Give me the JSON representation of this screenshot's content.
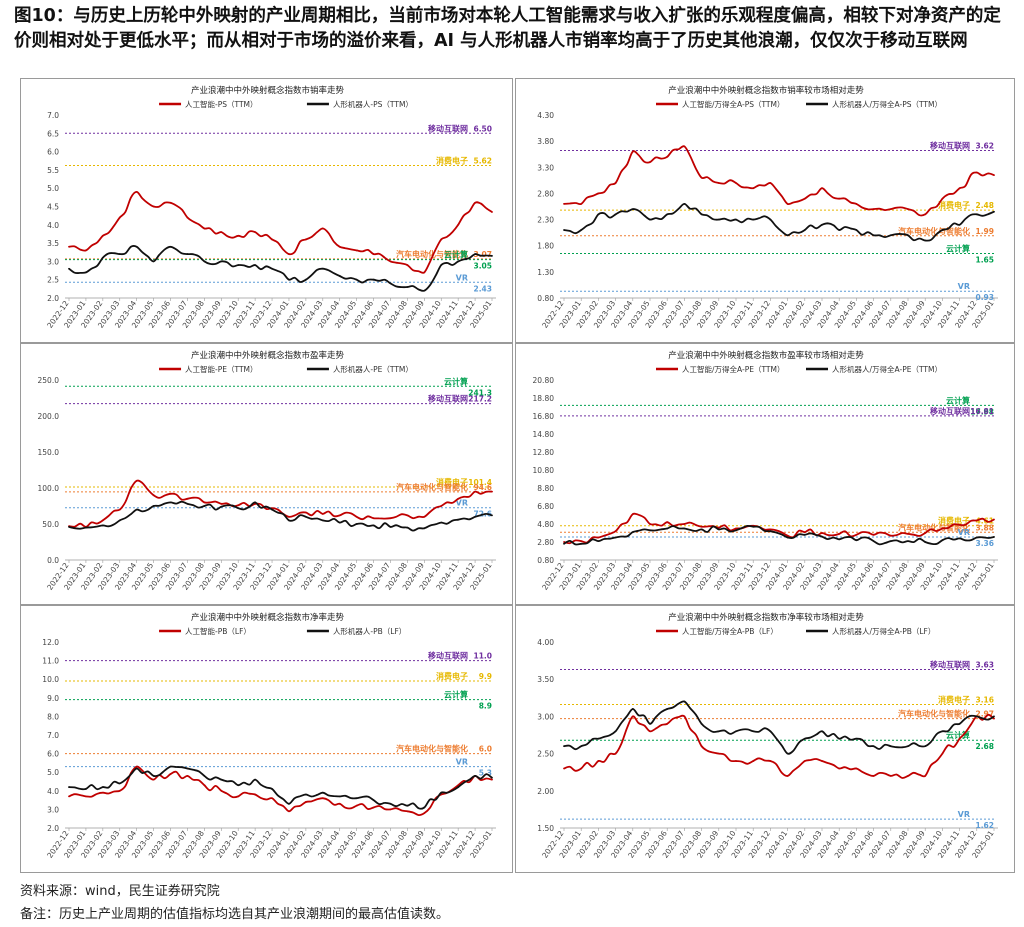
{
  "headline": "图10：与历史上历轮中外映射的产业周期相比，当前市场对本轮人工智能需求与收入扩张的乐观程度偏高，相较下对净资产的定价则相对处于更低水平；而从相对于市场的溢价来看，AI 与人形机器人市销率均高于了历史其他浪潮，仅仅次于移动互联网",
  "footer": {
    "source": "资料来源：wind，民生证券研究院",
    "note": "备注：历史上产业周期的估值指标均选自其产业浪潮期间的最高估值读数。"
  },
  "colors": {
    "red": "#c00000",
    "black": "#111111",
    "purple": "#7030a0",
    "yellow": "#e6b800",
    "green": "#00a050",
    "orange": "#ed7d31",
    "blue": "#5b9bd5"
  },
  "chart_data": [
    {
      "type": "line",
      "title": "产业浪潮中中外映射概念指数市销率走势",
      "x": [
        "2022-12",
        "2023-01",
        "2023-02",
        "2023-03",
        "2023-04",
        "2023-05",
        "2023-06",
        "2023-07",
        "2023-08",
        "2023-09",
        "2023-10",
        "2023-11",
        "2023-12",
        "2024-01",
        "2024-02",
        "2024-03",
        "2024-04",
        "2024-05",
        "2024-06",
        "2024-07",
        "2024-08",
        "2024-09",
        "2024-10",
        "2024-11",
        "2024-12",
        "2025-01"
      ],
      "ylim": [
        2.0,
        7.0
      ],
      "yticks": [
        "2.0",
        "2.5",
        "3.0",
        "3.5",
        "4.0",
        "4.5",
        "5.0",
        "5.5",
        "6.0",
        "6.5",
        "7.0"
      ],
      "tickdec": 1,
      "series": [
        {
          "name": "人工智能-PS（TTM）",
          "color": "red",
          "values": [
            3.4,
            3.3,
            3.7,
            4.2,
            4.9,
            4.5,
            4.6,
            4.2,
            3.9,
            3.8,
            3.7,
            3.8,
            3.6,
            3.2,
            3.6,
            3.9,
            3.4,
            3.3,
            3.2,
            3.0,
            2.9,
            2.7,
            3.6,
            4.0,
            4.6,
            4.35
          ]
        },
        {
          "name": "人形机器人-PS（TTM）",
          "color": "black",
          "values": [
            2.8,
            2.7,
            3.1,
            3.2,
            3.4,
            3.0,
            3.4,
            3.2,
            3.0,
            3.0,
            2.9,
            2.9,
            2.8,
            2.5,
            2.5,
            2.8,
            2.6,
            2.5,
            2.5,
            2.4,
            2.3,
            2.2,
            2.9,
            3.0,
            3.2,
            3.15
          ]
        }
      ],
      "refs": [
        {
          "name": "移动互联网",
          "value": "6.50",
          "color": "purple",
          "y": 6.5
        },
        {
          "name": "消费电子",
          "value": "5.62",
          "color": "yellow",
          "y": 5.62
        },
        {
          "name": "汽车电动化与智能化",
          "value": "3.07",
          "color": "orange",
          "y": 3.07
        },
        {
          "name": "云计算",
          "value": "3.05",
          "color": "green",
          "y": 3.05
        },
        {
          "name": "VR",
          "value": "2.43",
          "color": "blue",
          "y": 2.43
        }
      ]
    },
    {
      "type": "line",
      "title": "产业浪潮中中外映射概念指数市销率较市场相对走势",
      "x": [
        "2022-12",
        "2023-01",
        "2023-02",
        "2023-03",
        "2023-04",
        "2023-05",
        "2023-06",
        "2023-07",
        "2023-08",
        "2023-09",
        "2023-10",
        "2023-11",
        "2023-12",
        "2024-01",
        "2024-02",
        "2024-03",
        "2024-04",
        "2024-05",
        "2024-06",
        "2024-07",
        "2024-08",
        "2024-09",
        "2024-10",
        "2024-11",
        "2024-12",
        "2025-01"
      ],
      "ylim": [
        0.8,
        4.3
      ],
      "yticks": [
        "0.80",
        "1.30",
        "1.80",
        "2.30",
        "2.80",
        "3.30",
        "3.80",
        "4.30"
      ],
      "tickdec": 2,
      "series": [
        {
          "name": "人工智能/万得全A-PS（TTM）",
          "color": "red",
          "values": [
            2.6,
            2.6,
            2.8,
            3.0,
            3.6,
            3.4,
            3.5,
            3.7,
            3.1,
            3.0,
            3.0,
            2.9,
            3.0,
            2.6,
            2.7,
            2.9,
            2.7,
            2.6,
            2.5,
            2.5,
            2.5,
            2.4,
            2.7,
            2.9,
            3.2,
            3.15
          ]
        },
        {
          "name": "人形机器人/万得全A-PS（TTM）",
          "color": "black",
          "values": [
            2.1,
            2.1,
            2.4,
            2.4,
            2.5,
            2.3,
            2.4,
            2.6,
            2.4,
            2.3,
            2.3,
            2.3,
            2.3,
            2.0,
            2.1,
            2.2,
            2.1,
            2.1,
            2.0,
            2.0,
            2.0,
            1.9,
            2.1,
            2.2,
            2.4,
            2.45
          ]
        }
      ],
      "refs": [
        {
          "name": "移动互联网",
          "value": "3.62",
          "color": "purple",
          "y": 3.62
        },
        {
          "name": "消费电子",
          "value": "2.48",
          "color": "yellow",
          "y": 2.48
        },
        {
          "name": "汽车电动化与智能化",
          "value": "1.99",
          "color": "orange",
          "y": 1.99
        },
        {
          "name": "云计算",
          "value": "1.65",
          "color": "green",
          "y": 1.65
        },
        {
          "name": "VR",
          "value": "0.93",
          "color": "blue",
          "y": 0.93
        }
      ]
    },
    {
      "type": "line",
      "title": "产业浪潮中中外映射概念指数市盈率走势",
      "x": [
        "2022-12",
        "2023-01",
        "2023-02",
        "2023-03",
        "2023-04",
        "2023-05",
        "2023-06",
        "2023-07",
        "2023-08",
        "2023-09",
        "2023-10",
        "2023-11",
        "2023-12",
        "2024-01",
        "2024-02",
        "2024-03",
        "2024-04",
        "2024-05",
        "2024-06",
        "2024-07",
        "2024-08",
        "2024-09",
        "2024-10",
        "2024-11",
        "2024-12",
        "2025-01"
      ],
      "ylim": [
        0,
        250
      ],
      "yticks": [
        "0.0",
        "50.0",
        "100.0",
        "150.0",
        "200.0",
        "250.0"
      ],
      "tickdec": 1,
      "series": [
        {
          "name": "人工智能-PE（TTM）",
          "color": "red",
          "values": [
            47,
            46,
            55,
            70,
            110,
            90,
            92,
            85,
            80,
            78,
            76,
            78,
            72,
            60,
            66,
            64,
            62,
            60,
            58,
            58,
            62,
            60,
            75,
            85,
            95,
            95
          ]
        },
        {
          "name": "人形机器人-PE（TTM）",
          "color": "black",
          "values": [
            46,
            45,
            48,
            55,
            70,
            75,
            80,
            78,
            75,
            74,
            72,
            80,
            70,
            55,
            60,
            55,
            52,
            50,
            48,
            46,
            45,
            44,
            52,
            56,
            60,
            62
          ]
        }
      ],
      "refs": [
        {
          "name": "云计算",
          "value": "241.3",
          "color": "green",
          "y": 241.3
        },
        {
          "name": "移动互联网",
          "value": "217.2",
          "color": "purple",
          "y": 217.2
        },
        {
          "name": "消费电子",
          "value": "101.4",
          "color": "yellow",
          "y": 101.4
        },
        {
          "name": "汽车电动化与智能化",
          "value": "94.6",
          "color": "orange",
          "y": 94.6
        },
        {
          "name": "VR",
          "value": "72.6",
          "color": "blue",
          "y": 72.6
        }
      ]
    },
    {
      "type": "line",
      "title": "产业浪潮中中外映射概念指数市盈率较市场相对走势",
      "x": [
        "2022-12",
        "2023-01",
        "2023-02",
        "2023-03",
        "2023-04",
        "2023-05",
        "2023-06",
        "2023-07",
        "2023-08",
        "2023-09",
        "2023-10",
        "2023-11",
        "2023-12",
        "2024-01",
        "2024-02",
        "2024-03",
        "2024-04",
        "2024-05",
        "2024-06",
        "2024-07",
        "2024-08",
        "2024-09",
        "2024-10",
        "2024-11",
        "2024-12",
        "2025-01"
      ],
      "ylim": [
        0.8,
        20.8
      ],
      "yticks": [
        "0.80",
        "2.80",
        "4.80",
        "6.80",
        "8.80",
        "10.80",
        "12.80",
        "14.80",
        "16.80",
        "18.80",
        "20.80"
      ],
      "tickdec": 2,
      "series": [
        {
          "name": "人工智能/万得全A-PE（TTM）",
          "color": "red",
          "values": [
            2.8,
            2.9,
            3.3,
            4.0,
            5.9,
            4.8,
            5.0,
            4.8,
            4.5,
            4.4,
            4.3,
            4.6,
            4.2,
            3.5,
            3.9,
            3.8,
            3.7,
            3.6,
            3.6,
            3.5,
            3.7,
            3.8,
            4.3,
            4.7,
            5.2,
            5.3
          ]
        },
        {
          "name": "人形机器人/万得全A-PE（TTM）",
          "color": "black",
          "values": [
            2.6,
            2.6,
            2.9,
            3.3,
            3.9,
            4.1,
            4.3,
            4.3,
            4.2,
            4.2,
            4.1,
            4.5,
            4.0,
            3.3,
            3.6,
            3.4,
            3.1,
            3.0,
            2.9,
            2.9,
            2.9,
            2.8,
            3.0,
            3.2,
            3.3,
            3.36
          ]
        }
      ],
      "refs": [
        {
          "name": "云计算",
          "value": "17.98",
          "color": "green",
          "y": 17.98
        },
        {
          "name": "移动互联网",
          "value": "16.81",
          "color": "purple",
          "y": 16.81
        },
        {
          "name": "消费电子",
          "value": "4.61",
          "color": "yellow",
          "y": 4.61
        },
        {
          "name": "汽车电动化与智能化",
          "value": "3.88",
          "color": "orange",
          "y": 3.88
        },
        {
          "name": "VR",
          "value": "3.36",
          "color": "blue",
          "y": 3.36
        }
      ]
    },
    {
      "type": "line",
      "title": "产业浪潮中中外映射概念指数市净率走势",
      "x": [
        "2022-12",
        "2023-01",
        "2023-02",
        "2023-03",
        "2023-04",
        "2023-05",
        "2023-06",
        "2023-07",
        "2023-08",
        "2023-09",
        "2023-10",
        "2023-11",
        "2023-12",
        "2024-01",
        "2024-02",
        "2024-03",
        "2024-04",
        "2024-05",
        "2024-06",
        "2024-07",
        "2024-08",
        "2024-09",
        "2024-10",
        "2024-11",
        "2024-12",
        "2025-01"
      ],
      "ylim": [
        2.0,
        12.0
      ],
      "yticks": [
        "2.0",
        "3.0",
        "4.0",
        "5.0",
        "6.0",
        "7.0",
        "8.0",
        "9.0",
        "10.0",
        "11.0",
        "12.0"
      ],
      "tickdec": 1,
      "series": [
        {
          "name": "人工智能-PB（LF）",
          "color": "red",
          "values": [
            3.7,
            3.7,
            3.9,
            4.0,
            5.3,
            4.6,
            4.9,
            4.8,
            4.3,
            4.0,
            3.7,
            3.8,
            3.6,
            2.9,
            3.4,
            3.6,
            3.3,
            3.2,
            3.1,
            3.0,
            2.9,
            2.8,
            3.8,
            4.3,
            4.8,
            4.6
          ]
        },
        {
          "name": "人形机器人-PB（LF）",
          "color": "black",
          "values": [
            4.2,
            4.1,
            4.2,
            4.4,
            5.2,
            4.8,
            5.3,
            5.2,
            4.8,
            4.6,
            4.3,
            4.6,
            4.1,
            3.3,
            3.8,
            3.9,
            3.7,
            3.6,
            3.5,
            3.3,
            3.2,
            3.1,
            3.9,
            4.2,
            4.8,
            4.7
          ]
        }
      ],
      "refs": [
        {
          "name": "移动互联网",
          "value": "11.0",
          "color": "purple",
          "y": 11.0
        },
        {
          "name": "消费电子",
          "value": "9.9",
          "color": "yellow",
          "y": 9.9
        },
        {
          "name": "云计算",
          "value": "8.9",
          "color": "green",
          "y": 8.9
        },
        {
          "name": "汽车电动化与智能化",
          "value": "6.0",
          "color": "orange",
          "y": 6.0
        },
        {
          "name": "VR",
          "value": "5.3",
          "color": "blue",
          "y": 5.3
        }
      ]
    },
    {
      "type": "line",
      "title": "产业浪潮中中外映射概念指数市净率较市场相对走势",
      "x": [
        "2022-12",
        "2023-01",
        "2023-02",
        "2023-03",
        "2023-04",
        "2023-05",
        "2023-06",
        "2023-07",
        "2023-08",
        "2023-09",
        "2023-10",
        "2023-11",
        "2023-12",
        "2024-01",
        "2024-02",
        "2024-03",
        "2024-04",
        "2024-05",
        "2024-06",
        "2024-07",
        "2024-08",
        "2024-09",
        "2024-10",
        "2024-11",
        "2024-12",
        "2025-01"
      ],
      "ylim": [
        1.5,
        4.0
      ],
      "yticks": [
        "1.50",
        "2.00",
        "2.50",
        "3.00",
        "3.50",
        "4.00"
      ],
      "tickdec": 2,
      "series": [
        {
          "name": "人工智能/万得全A-PB（LF）",
          "color": "red",
          "values": [
            2.3,
            2.3,
            2.4,
            2.5,
            3.0,
            2.8,
            2.9,
            3.0,
            2.6,
            2.5,
            2.4,
            2.4,
            2.4,
            2.2,
            2.4,
            2.4,
            2.3,
            2.3,
            2.2,
            2.2,
            2.2,
            2.2,
            2.5,
            2.7,
            3.0,
            2.97
          ]
        },
        {
          "name": "人形机器人/万得全A-PB（LF）",
          "color": "black",
          "values": [
            2.6,
            2.6,
            2.7,
            2.8,
            3.1,
            2.9,
            3.1,
            3.2,
            2.9,
            2.8,
            2.8,
            2.8,
            2.8,
            2.5,
            2.7,
            2.8,
            2.7,
            2.7,
            2.6,
            2.6,
            2.6,
            2.6,
            2.8,
            2.9,
            3.0,
            3.0
          ]
        }
      ],
      "refs": [
        {
          "name": "移动互联网",
          "value": "3.63",
          "color": "purple",
          "y": 3.63
        },
        {
          "name": "消费电子",
          "value": "3.16",
          "color": "yellow",
          "y": 3.16
        },
        {
          "name": "汽车电动化与智能化",
          "value": "2.97",
          "color": "orange",
          "y": 2.97
        },
        {
          "name": "云计算",
          "value": "2.68",
          "color": "green",
          "y": 2.68
        },
        {
          "name": "VR",
          "value": "1.62",
          "color": "blue",
          "y": 1.62
        }
      ]
    }
  ]
}
